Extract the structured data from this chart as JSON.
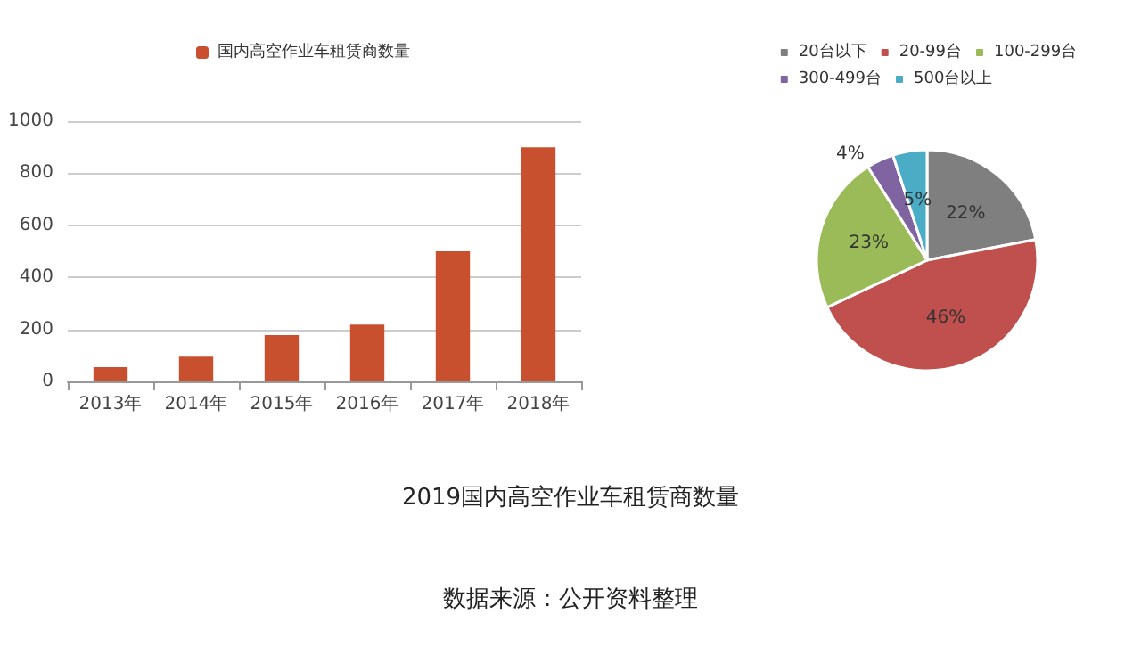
{
  "chart_data": [
    {
      "type": "bar",
      "categories": [
        "2013年",
        "2014年",
        "2015年",
        "2016年",
        "2017年",
        "2018年"
      ],
      "series": [
        {
          "name": "国内高空作业车租赁商数量",
          "color": "#c8502f",
          "values": [
            55,
            95,
            178,
            218,
            500,
            900
          ]
        }
      ],
      "ylim": [
        0,
        1000
      ],
      "yticks": [
        0,
        200,
        400,
        600,
        800,
        1000
      ],
      "grid": "y",
      "legend": "top",
      "annotations": [
        "2019国内高空作业车租赁商数量",
        "数据来源：公开资料整理"
      ]
    },
    {
      "type": "pie",
      "categories": [
        "20台以下",
        "20-99台",
        "100-299台",
        "300-499台",
        "500台以上"
      ],
      "values": [
        22,
        46,
        23,
        4,
        5
      ],
      "colors": [
        "#7f7f7f",
        "#c0504d",
        "#9bbb59",
        "#8064a2",
        "#4bacc6"
      ],
      "value_labels": [
        "22%",
        "46%",
        "23%",
        "4%",
        "5%"
      ],
      "legend": "top"
    }
  ]
}
